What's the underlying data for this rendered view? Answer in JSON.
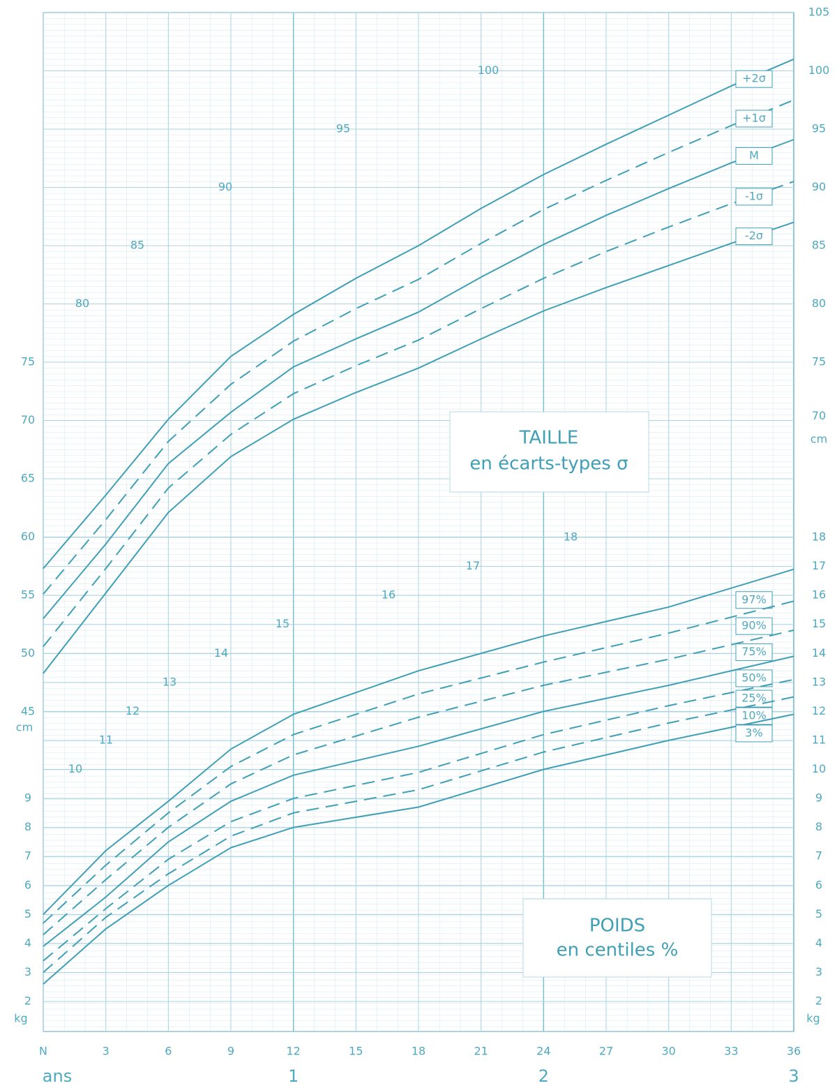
{
  "x_axis": {
    "xlim": [
      0,
      36
    ],
    "xticks": [
      {
        "value": 0,
        "label": "N"
      },
      3,
      6,
      9,
      12,
      15,
      18,
      21,
      24,
      27,
      30,
      33,
      36
    ],
    "unit": "ans",
    "year_ticks": [
      {
        "value": 12,
        "label": "1"
      },
      {
        "value": 24,
        "label": "2"
      },
      {
        "value": 36,
        "label": "3"
      }
    ]
  },
  "chart_data": [
    {
      "type": "line",
      "title": "TAILLE",
      "subtitle": "en écarts-types σ",
      "unit": "cm",
      "x": [
        0,
        3,
        6,
        9,
        12,
        15,
        18,
        21,
        24,
        27,
        30,
        33,
        36
      ],
      "ylim": [
        45,
        105
      ],
      "yticks_left": [
        45,
        50,
        55,
        60,
        65,
        70,
        75
      ],
      "yticks_right": [
        70,
        75,
        80,
        85,
        90,
        95,
        100,
        105
      ],
      "guide_labels": [
        80,
        85,
        90,
        95,
        100
      ],
      "color": "#3f9fb6",
      "series": [
        {
          "name": "+2σ",
          "dash": false,
          "values": [
            57.3,
            63.6,
            70.1,
            75.5,
            79.1,
            82.2,
            85,
            88.2,
            91.1,
            93.7,
            96.2,
            98.7,
            101
          ]
        },
        {
          "name": "+1σ",
          "dash": true,
          "values": [
            55.1,
            61.5,
            68.2,
            73.1,
            76.8,
            79.6,
            82.1,
            85.2,
            88.1,
            90.6,
            93,
            95.3,
            97.5
          ]
        },
        {
          "name": "M",
          "dash": false,
          "values": [
            53,
            59.4,
            66.3,
            70.7,
            74.6,
            77,
            79.3,
            82.3,
            85.1,
            87.6,
            89.9,
            92.1,
            94.1
          ]
        },
        {
          "name": "-1σ",
          "dash": true,
          "values": [
            50.6,
            57.3,
            64.2,
            68.8,
            72.3,
            74.7,
            76.9,
            79.6,
            82.2,
            84.5,
            86.6,
            88.6,
            90.5
          ]
        },
        {
          "name": "-2σ",
          "dash": false,
          "values": [
            48.3,
            55.2,
            62.1,
            66.9,
            70.1,
            72.4,
            74.5,
            77,
            79.4,
            81.4,
            83.3,
            85.2,
            87
          ]
        }
      ]
    },
    {
      "type": "line",
      "title": "POIDS",
      "subtitle": "en centiles %",
      "unit": "kg",
      "x": [
        0,
        3,
        6,
        9,
        12,
        18,
        24,
        30,
        36
      ],
      "ylim": [
        2,
        18
      ],
      "yticks_left": [
        2,
        3,
        4,
        5,
        6,
        7,
        8,
        9
      ],
      "yticks_right": [
        2,
        3,
        4,
        5,
        6,
        7,
        8,
        9,
        10,
        11,
        12,
        13,
        14,
        15,
        16,
        17,
        18
      ],
      "guide_labels": [
        10,
        11,
        12,
        13,
        14,
        15,
        16,
        17,
        18
      ],
      "color": "#3f9fb6",
      "series": [
        {
          "name": "97%",
          "dash": false,
          "values": [
            5,
            7.2,
            8.9,
            10.7,
            11.9,
            13.4,
            14.6,
            15.6,
            16.9
          ]
        },
        {
          "name": "90%",
          "dash": true,
          "values": [
            4.7,
            6.7,
            8.5,
            10.1,
            11.2,
            12.6,
            13.7,
            14.7,
            15.8
          ]
        },
        {
          "name": "75%",
          "dash": true,
          "values": [
            4.3,
            6.2,
            8,
            9.5,
            10.5,
            11.8,
            12.9,
            13.8,
            14.8
          ]
        },
        {
          "name": "50%",
          "dash": false,
          "values": [
            3.9,
            5.6,
            7.5,
            8.9,
            9.8,
            10.8,
            12,
            12.9,
            13.9
          ]
        },
        {
          "name": "25%",
          "dash": true,
          "values": [
            3.4,
            5.2,
            6.9,
            8.2,
            9,
            9.9,
            11.2,
            12.2,
            13.1
          ]
        },
        {
          "name": "10%",
          "dash": true,
          "values": [
            3,
            4.9,
            6.4,
            7.7,
            8.5,
            9.3,
            10.6,
            11.6,
            12.5
          ]
        },
        {
          "name": "3%",
          "dash": false,
          "values": [
            2.6,
            4.5,
            6,
            7.3,
            8,
            8.7,
            10,
            11,
            11.9
          ]
        }
      ]
    }
  ]
}
